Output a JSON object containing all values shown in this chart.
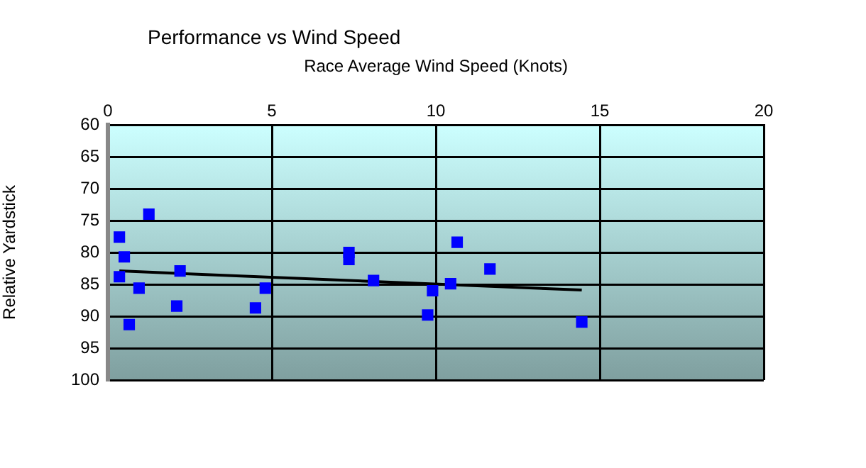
{
  "chart_data": {
    "type": "scatter",
    "title": "Performance vs Wind Speed",
    "xlabel": "Race Average Wind Speed (Knots)",
    "ylabel": "Relative Yardstick",
    "xlim": [
      0,
      20
    ],
    "xticks": [
      0,
      5,
      10,
      15,
      20
    ],
    "ylim": [
      100,
      60
    ],
    "yticks": [
      60,
      65,
      70,
      75,
      80,
      85,
      90,
      95,
      100
    ],
    "grid": true,
    "legend": false,
    "marker": "square",
    "series": [
      {
        "color": "#0000ff",
        "x": [
          0.35,
          0.5,
          0.35,
          0.65,
          0.95,
          1.25,
          2.1,
          2.2,
          4.5,
          4.8,
          7.35,
          7.35,
          8.1,
          9.75,
          9.9,
          10.45,
          10.65,
          11.65,
          14.45
        ],
        "values": [
          77.6,
          80.7,
          83.8,
          91.3,
          85.6,
          74.0,
          88.4,
          82.9,
          88.7,
          85.6,
          80.0,
          81.1,
          84.4,
          89.8,
          86.0,
          84.9,
          78.4,
          82.6,
          90.9
        ]
      },
      {
        "type": "line",
        "color": "#000000",
        "marker": "none",
        "x": [
          0.35,
          14.45
        ],
        "values": [
          82.9,
          85.9
        ]
      }
    ]
  }
}
